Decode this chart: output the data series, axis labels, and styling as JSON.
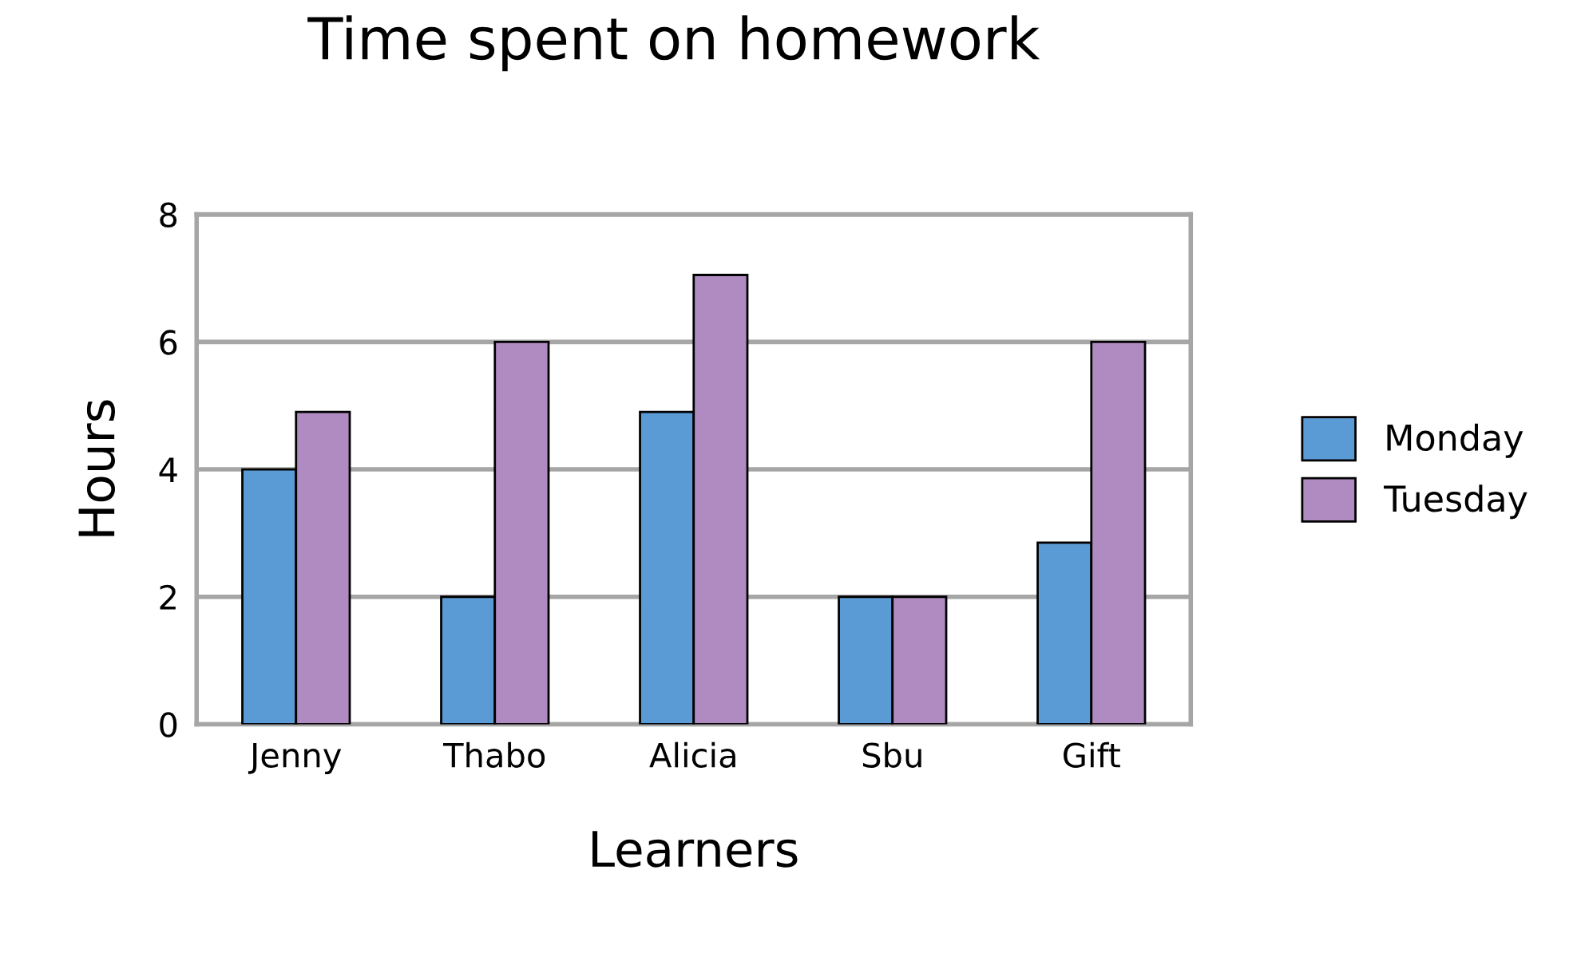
{
  "chart_data": {
    "type": "bar",
    "title": "Time spent on homework",
    "xlabel": "Learners",
    "ylabel": "Hours",
    "categories": [
      "Jenny",
      "Thabo",
      "Alicia",
      "Sbu",
      "Gift"
    ],
    "series": [
      {
        "name": "Monday",
        "color": "#5b9bd5",
        "values": [
          4,
          2,
          4.9,
          2,
          2.85
        ]
      },
      {
        "name": "Tuesday",
        "color": "#b08bc2",
        "values": [
          4.9,
          6,
          7.05,
          2,
          6
        ]
      }
    ],
    "ylim": [
      0,
      8
    ],
    "yticks": [
      0,
      2,
      4,
      6,
      8
    ],
    "grid": "y",
    "legend": "right"
  }
}
